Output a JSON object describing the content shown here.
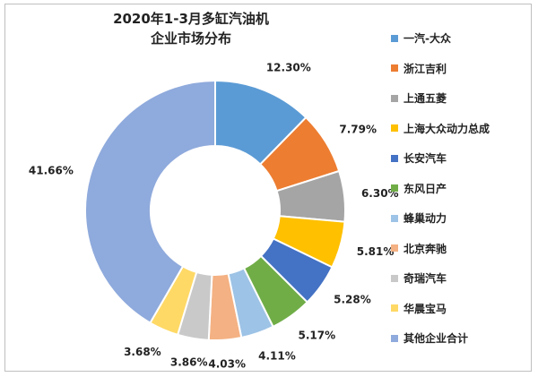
{
  "chart_data": {
    "type": "pie",
    "donut": true,
    "title_lines": [
      "2020年1-3月多缸汽油机",
      "企业市场分布"
    ],
    "legend_position": "right",
    "labels": [
      "一汽-大众",
      "浙江吉利",
      "上通五菱",
      "上海大众动力总成",
      "长安汽车",
      "东风日产",
      "蜂巢动力",
      "北京奔驰",
      "奇瑞汽车",
      "华晨宝马",
      "其他企业合计"
    ],
    "values": [
      12.3,
      7.79,
      6.3,
      5.81,
      5.28,
      5.17,
      4.11,
      4.03,
      3.86,
      3.68,
      41.66
    ],
    "value_labels": [
      "12.30%",
      "7.79%",
      "6.30%",
      "5.81%",
      "5.28%",
      "5.17%",
      "4.11%",
      "4.03%",
      "3.86%",
      "3.68%",
      "41.66%"
    ],
    "colors": [
      "#5b9bd5",
      "#ed7d31",
      "#a5a5a5",
      "#ffc000",
      "#4472c4",
      "#70ad47",
      "#9dc3e6",
      "#f4b183",
      "#c9c9c9",
      "#ffd966",
      "#8faadc"
    ]
  }
}
